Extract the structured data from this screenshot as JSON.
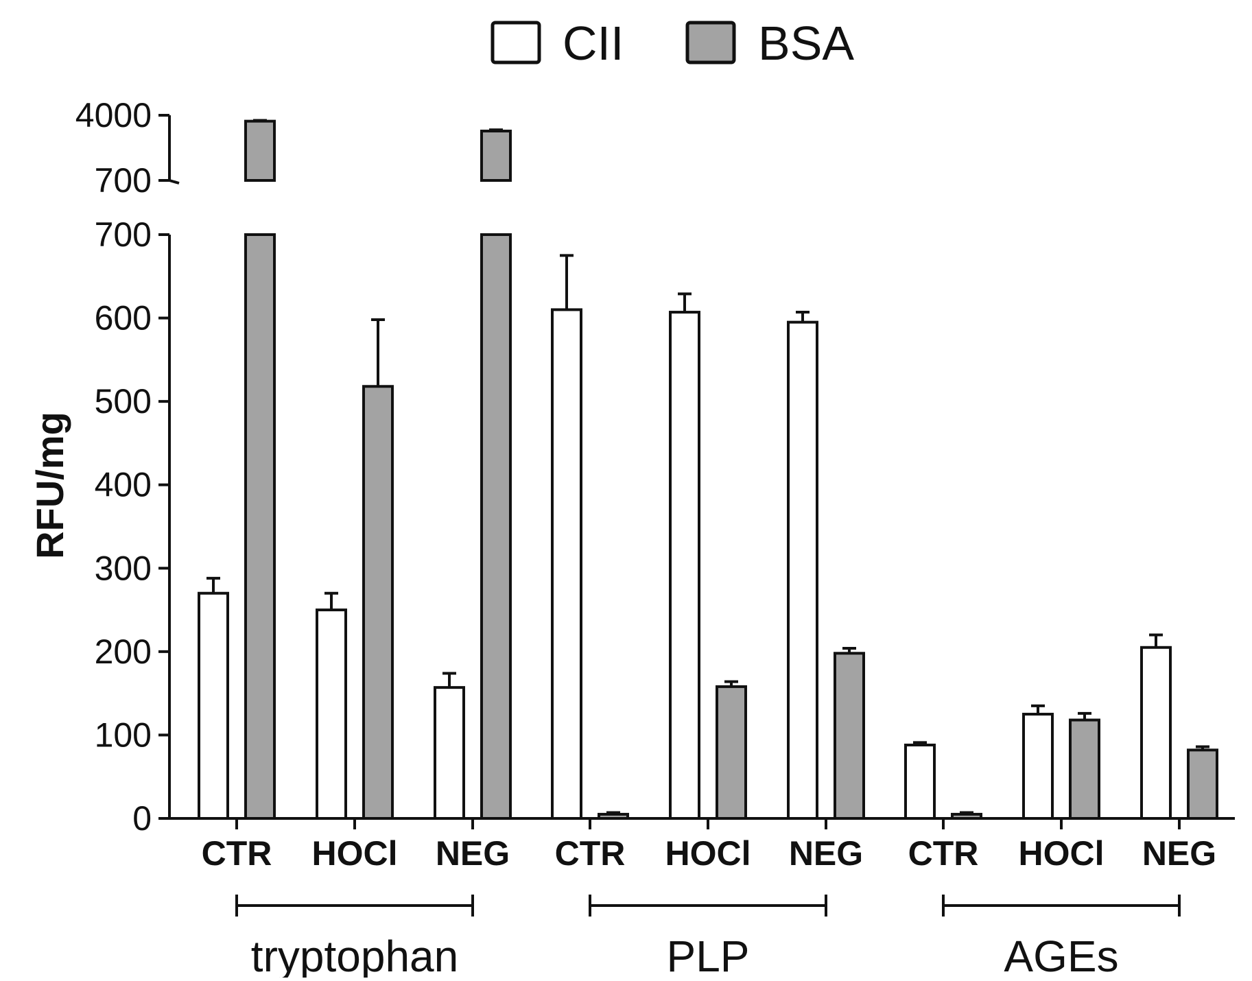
{
  "chart_data": {
    "type": "bar",
    "title": "",
    "xlabel": "",
    "ylabel": "RFU/mg",
    "ylim": [
      0,
      700
    ],
    "y_break": {
      "lower_range": [
        0,
        700
      ],
      "upper_range": [
        700,
        4000
      ],
      "upper_tick_labels": [
        "4000",
        "700"
      ]
    },
    "yticks": [
      "0",
      "100",
      "200",
      "300",
      "400",
      "500",
      "600",
      "700"
    ],
    "groups": [
      {
        "label": "tryptophan",
        "categories": [
          "CTR",
          "HOCl",
          "NEG"
        ]
      },
      {
        "label": "PLP",
        "categories": [
          "CTR",
          "HOCl",
          "NEG"
        ]
      },
      {
        "label": "AGEs",
        "categories": [
          "CTR",
          "HOCl",
          "NEG"
        ]
      }
    ],
    "categories": [
      "CTR",
      "HOCl",
      "NEG",
      "CTR",
      "HOCl",
      "NEG",
      "CTR",
      "HOCl",
      "NEG"
    ],
    "series": [
      {
        "name": "CII",
        "color": "#ffffff",
        "values": [
          270,
          250,
          157,
          610,
          607,
          595,
          88,
          125,
          205
        ],
        "errors": [
          18,
          20,
          17,
          65,
          22,
          12,
          3,
          10,
          15
        ]
      },
      {
        "name": "BSA",
        "color": "#a3a3a3",
        "values": [
          3700,
          518,
          3200,
          5,
          158,
          198,
          5,
          118,
          82
        ],
        "errors": [
          40,
          80,
          60,
          2,
          6,
          6,
          2,
          8,
          4
        ]
      }
    ],
    "legend_position": "top-center",
    "grid": false
  }
}
